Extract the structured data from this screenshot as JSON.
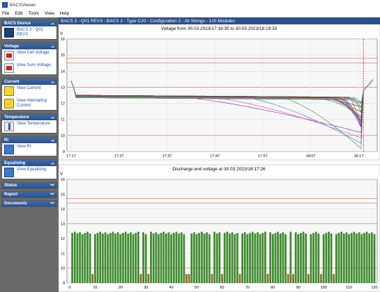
{
  "app": {
    "title": "BACSViewer"
  },
  "menu": [
    "File",
    "Edit",
    "Tools",
    "View",
    "Help"
  ],
  "sidebar": {
    "bacs_device": {
      "header": "BACS Device",
      "item": "BACS 3 - Q01 REV3"
    },
    "voltage": {
      "header": "Voltage",
      "items": [
        "View Cell Voltage",
        "View Sum Voltage"
      ]
    },
    "current": {
      "header": "Current",
      "items": [
        "View Current",
        "View Alternating Current"
      ]
    },
    "temperature": {
      "header": "Temperature",
      "items": [
        "View Temperature"
      ]
    },
    "ri": {
      "header": "Ri",
      "items": [
        "View Ri"
      ]
    },
    "equalising": {
      "header": "Equalising",
      "items": [
        "View Equalising"
      ]
    },
    "collapsed": [
      "Status",
      "Report",
      "Documents"
    ]
  },
  "header": {
    "title": "BACS 3 - Q01 REV3 - BACS 2 - Type C20 - Configuration 2 - All Strings - 120 Modules"
  },
  "chart_data": [
    {
      "type": "line",
      "title": "Voltage from 30.03.2023/17:16:35 to 30.03.2023/18:19:33",
      "ylabel": "V",
      "ylim": [
        9,
        16
      ],
      "y_ticks": [
        "16",
        "15",
        "14",
        "13",
        "12",
        "11",
        "10",
        "9"
      ],
      "x_ticks": [
        "17:17",
        "17:27",
        "17:37",
        "17:47",
        "17:57",
        "18:07",
        "18:17"
      ],
      "xlim": [
        0,
        63
      ],
      "threshold_lines": [
        14.8,
        14.5,
        13.0,
        10.0
      ],
      "marker_x": 61,
      "series_note": "120 module voltage curves"
    },
    {
      "type": "bar",
      "title": "Discharge end voltage at 30.03.2023/18:17:26",
      "ylabel": "V",
      "ylim": [
        9,
        16
      ],
      "y_ticks": [
        "16",
        "15",
        "14",
        "13",
        "12",
        "11",
        "10",
        "9"
      ],
      "x_ticks": [
        "0",
        "10",
        "20",
        "30",
        "40",
        "50",
        "60",
        "70",
        "80",
        "90",
        "100",
        "110",
        "120"
      ],
      "threshold_lines": [
        14.7,
        14.4,
        13.0,
        10.0
      ],
      "bar_color": "#3e8a2e",
      "low_modules": [
        9,
        28,
        31,
        46,
        47,
        56,
        60,
        67,
        78,
        86,
        88,
        94,
        99,
        104
      ],
      "low_value": 9.6,
      "typical_value": 12.3
    }
  ],
  "colors": {
    "accent": "#2c5089",
    "bar": "#3e8a2e",
    "threshold": "#e06060"
  }
}
